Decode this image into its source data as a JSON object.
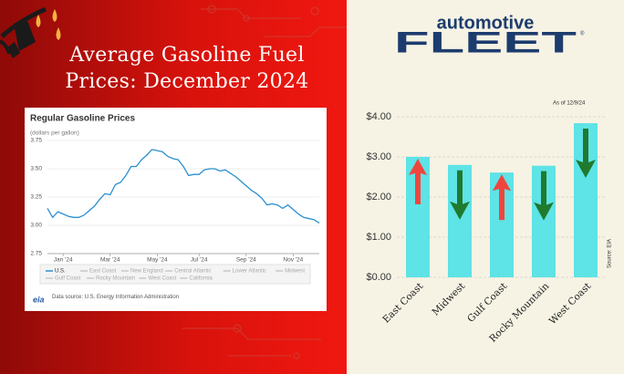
{
  "header": {
    "title": "Average Gasoline Fuel Prices: December 2024"
  },
  "logo": {
    "line1": "automotive",
    "line2": "FLEET",
    "mark": "®"
  },
  "chart_data": [
    {
      "type": "line",
      "title": "Regular Gasoline Prices",
      "subtitle": "(dollars per gallon)",
      "categories": [
        null,
        null,
        null,
        "Jan '24",
        null,
        null,
        null,
        null,
        null,
        null,
        null,
        null,
        "Mar '24",
        null,
        null,
        null,
        null,
        null,
        null,
        null,
        null,
        "May '24",
        null,
        null,
        null,
        null,
        null,
        null,
        null,
        "Jul '24",
        null,
        null,
        null,
        null,
        null,
        null,
        null,
        null,
        "Sep '24",
        null,
        null,
        null,
        null,
        null,
        null,
        null,
        null,
        "Nov '24",
        null,
        null,
        null,
        null,
        null
      ],
      "series": [
        {
          "name": "U.S.",
          "color": "#2b8fd1",
          "values": [
            3.15,
            3.07,
            3.12,
            3.1,
            3.08,
            3.07,
            3.07,
            3.09,
            3.13,
            3.17,
            3.23,
            3.28,
            3.27,
            3.36,
            3.38,
            3.44,
            3.52,
            3.52,
            3.58,
            3.62,
            3.67,
            3.66,
            3.65,
            3.61,
            3.59,
            3.58,
            3.52,
            3.44,
            3.45,
            3.45,
            3.49,
            3.5,
            3.5,
            3.48,
            3.49,
            3.46,
            3.43,
            3.39,
            3.35,
            3.31,
            3.28,
            3.24,
            3.18,
            3.19,
            3.18,
            3.15,
            3.18,
            3.14,
            3.1,
            3.07,
            3.06,
            3.05,
            3.02
          ]
        }
      ],
      "other_regions": [
        "East Coast",
        "New England",
        "Central Atlantic",
        "Lower Atlantic",
        "Midwest",
        "Gulf Coast",
        "Rocky Mountain",
        "West Coast",
        "California"
      ],
      "other_regions_color": "#c8c8c8",
      "ylim": [
        2.75,
        3.75
      ],
      "yticks": [
        2.75,
        {
          "value": 3,
          "label": "3.00"
        },
        3.25,
        {
          "value": 3.5,
          "label": "3.50"
        },
        3.75
      ],
      "grid": true,
      "source_logo": "eia",
      "source": "Data source: U.S. Energy Information Administration"
    },
    {
      "type": "bar",
      "annotation": "As of 12/9/24",
      "source": "Source: EIA",
      "categories": [
        "East Coast",
        "Midwest",
        "Gulf Coast",
        "Rocky Mountain",
        "West Coast"
      ],
      "values": [
        3.0,
        2.8,
        2.61,
        2.78,
        3.84
      ],
      "color": "#5ee3e6",
      "trend": [
        "up",
        "down",
        "up",
        "down",
        "down"
      ],
      "trend_colors": {
        "up": "#f0453f",
        "down": "#1f7a2e"
      },
      "ylim": [
        0,
        4
      ],
      "yticks": [
        {
          "value": 0,
          "label": "$0.00"
        },
        {
          "value": 1,
          "label": "$1.00"
        },
        {
          "value": 2,
          "label": "$2.00"
        },
        {
          "value": 3,
          "label": "$3.00"
        },
        {
          "value": 4,
          "label": "$4.00"
        }
      ],
      "grid": true
    }
  ]
}
